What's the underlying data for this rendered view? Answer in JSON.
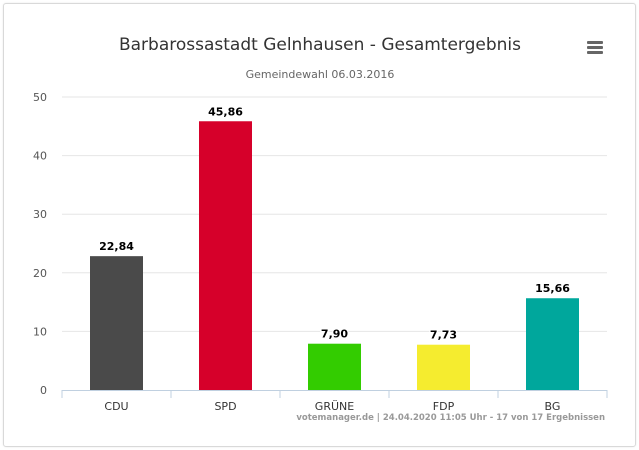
{
  "chart_data": {
    "type": "bar",
    "title": "Barbarossastadt Gelnhausen - Gesamtergebnis",
    "subtitle": "Gemeindewahl 06.03.2016",
    "categories": [
      "CDU",
      "SPD",
      "GRÜNE",
      "FDP",
      "BG"
    ],
    "values": [
      22.84,
      45.86,
      7.9,
      7.73,
      15.66
    ],
    "value_labels": [
      "22,84",
      "45,86",
      "7,90",
      "7,73",
      "15,66"
    ],
    "colors": [
      "#4a4a4a",
      "#d6002a",
      "#33cc00",
      "#f5ec2f",
      "#00a79c"
    ],
    "ylim": [
      0,
      50
    ],
    "yticks": [
      0,
      10,
      20,
      30,
      40,
      50
    ],
    "grid": true,
    "credits": "votemanager.de | 24.04.2020 11:05 Uhr - 17 von 17 Ergebnissen",
    "menu_icon": "hamburger-menu-icon"
  }
}
